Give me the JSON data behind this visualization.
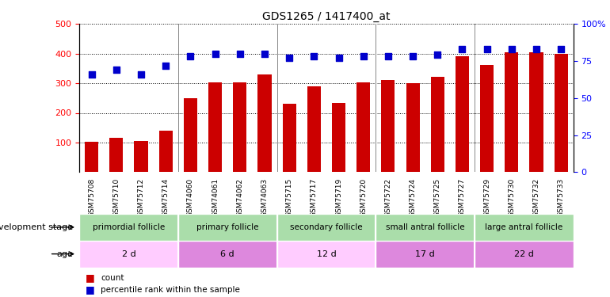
{
  "title": "GDS1265 / 1417400_at",
  "samples": [
    "GSM75708",
    "GSM75710",
    "GSM75712",
    "GSM75714",
    "GSM74060",
    "GSM74061",
    "GSM74062",
    "GSM74063",
    "GSM75715",
    "GSM75717",
    "GSM75719",
    "GSM75720",
    "GSM75722",
    "GSM75724",
    "GSM75725",
    "GSM75727",
    "GSM75729",
    "GSM75730",
    "GSM75732",
    "GSM75733"
  ],
  "counts": [
    103,
    117,
    105,
    140,
    248,
    302,
    302,
    330,
    232,
    290,
    233,
    303,
    310,
    300,
    322,
    390,
    362,
    404,
    405,
    400
  ],
  "percentiles": [
    66,
    69,
    66,
    72,
    78,
    80,
    80,
    80,
    77,
    78,
    77,
    78,
    78,
    78,
    79,
    83,
    83,
    83,
    83,
    83
  ],
  "bar_color": "#cc0000",
  "dot_color": "#0000cc",
  "ylim_left": [
    0,
    500
  ],
  "ylim_right": [
    0,
    100
  ],
  "yticks_left": [
    100,
    200,
    300,
    400,
    500
  ],
  "yticks_right": [
    0,
    25,
    50,
    75,
    100
  ],
  "groups": [
    {
      "label": "primordial follicle",
      "start": 0,
      "end": 4
    },
    {
      "label": "primary follicle",
      "start": 4,
      "end": 8
    },
    {
      "label": "secondary follicle",
      "start": 8,
      "end": 12
    },
    {
      "label": "small antral follicle",
      "start": 12,
      "end": 16
    },
    {
      "label": "large antral follicle",
      "start": 16,
      "end": 20
    }
  ],
  "ages": [
    {
      "label": "2 d",
      "start": 0,
      "end": 4,
      "color": "#ffccff"
    },
    {
      "label": "6 d",
      "start": 4,
      "end": 8,
      "color": "#dd88dd"
    },
    {
      "label": "12 d",
      "start": 8,
      "end": 12,
      "color": "#ffccff"
    },
    {
      "label": "17 d",
      "start": 12,
      "end": 16,
      "color": "#dd88dd"
    },
    {
      "label": "22 d",
      "start": 16,
      "end": 20,
      "color": "#dd88dd"
    }
  ],
  "group_color": "#aaddaa",
  "dev_stage_label": "development stage",
  "age_label": "age",
  "legend_count": "count",
  "legend_percentile": "percentile rank within the sample",
  "dot_size": 28,
  "bar_width": 0.55
}
